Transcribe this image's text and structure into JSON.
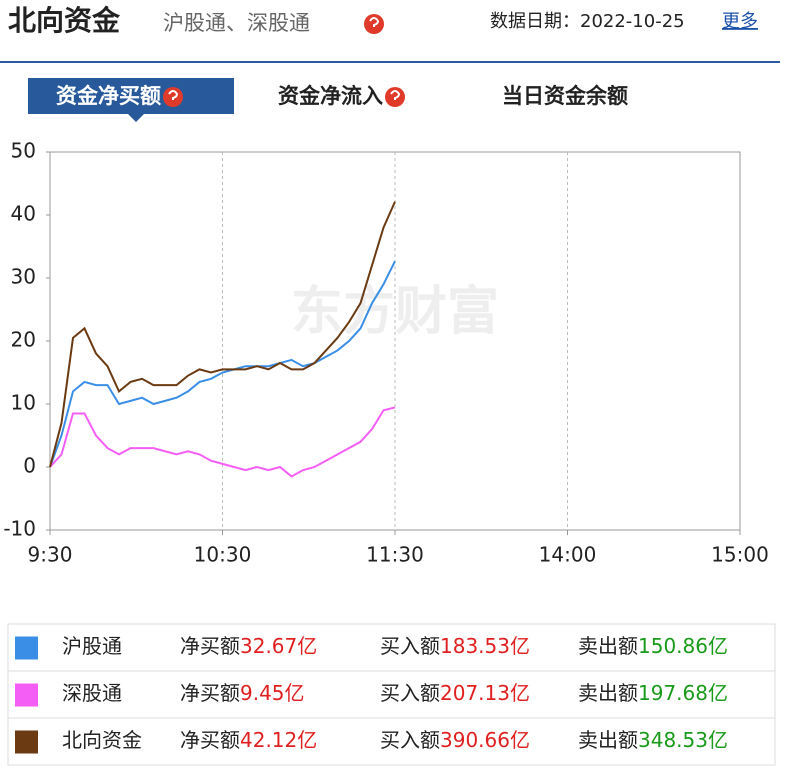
{
  "header": {
    "title": "北向资金",
    "subtitle": "沪股通、深股通",
    "date": "数据日期：2022-10-25",
    "more": "更多"
  },
  "tabs": {
    "items": [
      "资金净买额",
      "资金净流入",
      "当日资金余额"
    ],
    "active": 0
  },
  "chart_data": {
    "type": "line",
    "watermark": "东方财富",
    "x": [
      0,
      4,
      8,
      12,
      16,
      20,
      24,
      28,
      32,
      36,
      40,
      44,
      48,
      52,
      56,
      60,
      64,
      68,
      72,
      76,
      80,
      84,
      88,
      92,
      96,
      100,
      104,
      108,
      112,
      116,
      120
    ],
    "xlim": [
      0,
      240
    ],
    "xticks": [
      {
        "value": 0,
        "label": "9:30"
      },
      {
        "value": 60,
        "label": "10:30"
      },
      {
        "value": 120,
        "label": "11:30"
      },
      {
        "value": 180,
        "label": "14:00"
      },
      {
        "value": 240,
        "label": "15:00"
      }
    ],
    "ylim": [
      -10,
      50
    ],
    "yticks": [
      -10,
      0,
      10,
      20,
      30,
      40,
      50
    ],
    "grid": "x",
    "series": [
      {
        "name": "沪股通",
        "color": "#3a8ee6",
        "values": [
          0,
          5,
          12,
          13.5,
          13,
          13,
          10,
          10.5,
          11,
          10,
          10.5,
          11,
          12,
          13.5,
          14,
          15,
          15.5,
          16,
          16,
          16,
          16.5,
          17,
          16,
          16.5,
          17.5,
          18.5,
          20,
          22,
          26,
          29,
          32.67
        ]
      },
      {
        "name": "深股通",
        "color": "#f55ef5",
        "values": [
          0,
          2,
          8.5,
          8.5,
          5,
          3,
          2,
          3,
          3,
          3,
          2.5,
          2,
          2.5,
          2,
          1,
          0.5,
          0,
          -0.5,
          0,
          -0.5,
          0,
          -1.5,
          -0.5,
          0,
          1,
          2,
          3,
          4,
          6,
          9,
          9.45
        ]
      },
      {
        "name": "北向资金",
        "color": "#6b3a12",
        "values": [
          0,
          7,
          20.5,
          22,
          18,
          16,
          12,
          13.5,
          14,
          13,
          13,
          13,
          14.5,
          15.5,
          15,
          15.5,
          15.5,
          15.5,
          16,
          15.5,
          16.5,
          15.5,
          15.5,
          16.5,
          18.5,
          20.5,
          23,
          26,
          32,
          38,
          42.12
        ]
      }
    ]
  },
  "summary": {
    "labels": [
      "净买额",
      "买入额",
      "卖出额"
    ],
    "colors": [
      "#e02020",
      "#e02020",
      "#1a9a1a"
    ],
    "rows": [
      [
        "32.67亿",
        "183.53亿",
        "150.86亿"
      ],
      [
        "9.45亿",
        "207.13亿",
        "197.68亿"
      ],
      [
        "42.12亿",
        "390.66亿",
        "348.53亿"
      ]
    ]
  }
}
